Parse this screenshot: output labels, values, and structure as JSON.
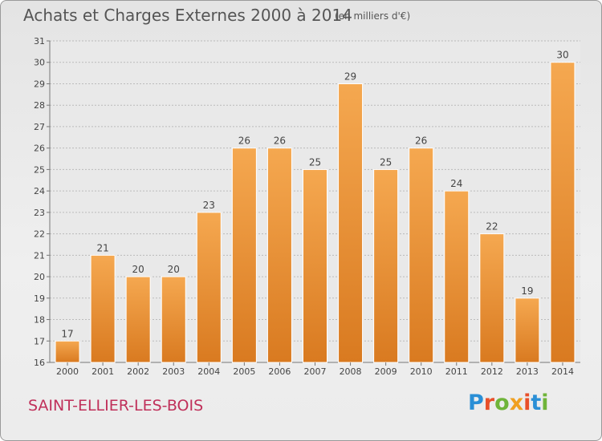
{
  "header": {
    "title": "Achats et Charges Externes 2000 à 2014",
    "subtitle": "(en milliers d'€)"
  },
  "footer": {
    "location": "SAINT-ELLIER-LES-BOIS",
    "logo_text": "Proxiti",
    "logo_colors": [
      "#2a8fd6",
      "#e8502a",
      "#6fb43a",
      "#f0a020",
      "#e8502a",
      "#2a8fd6",
      "#6fb43a"
    ]
  },
  "colors": {
    "bar_fill": "#f09030",
    "bar_light": "#f5a850",
    "bar_dark": "#d97a20",
    "grid": "#bbbbbb",
    "axis_text": "#444444"
  },
  "chart_data": {
    "type": "bar",
    "categories": [
      "2000",
      "2001",
      "2002",
      "2003",
      "2004",
      "2005",
      "2006",
      "2007",
      "2008",
      "2009",
      "2010",
      "2011",
      "2012",
      "2013",
      "2014"
    ],
    "values": [
      17,
      21,
      20,
      20,
      23,
      26,
      26,
      25,
      29,
      25,
      26,
      24,
      22,
      19,
      30
    ],
    "data_labels": [
      "17",
      "21",
      "20",
      "20",
      "23",
      "26",
      "26",
      "25",
      "29",
      "25",
      "26",
      "24",
      "22",
      "19",
      "30"
    ],
    "ylim": [
      16,
      31
    ],
    "yticks": [
      "16",
      "17",
      "18",
      "19",
      "20",
      "21",
      "22",
      "23",
      "24",
      "25",
      "26",
      "27",
      "28",
      "29",
      "30",
      "31"
    ],
    "grid": true,
    "xlabel": "",
    "ylabel": ""
  }
}
